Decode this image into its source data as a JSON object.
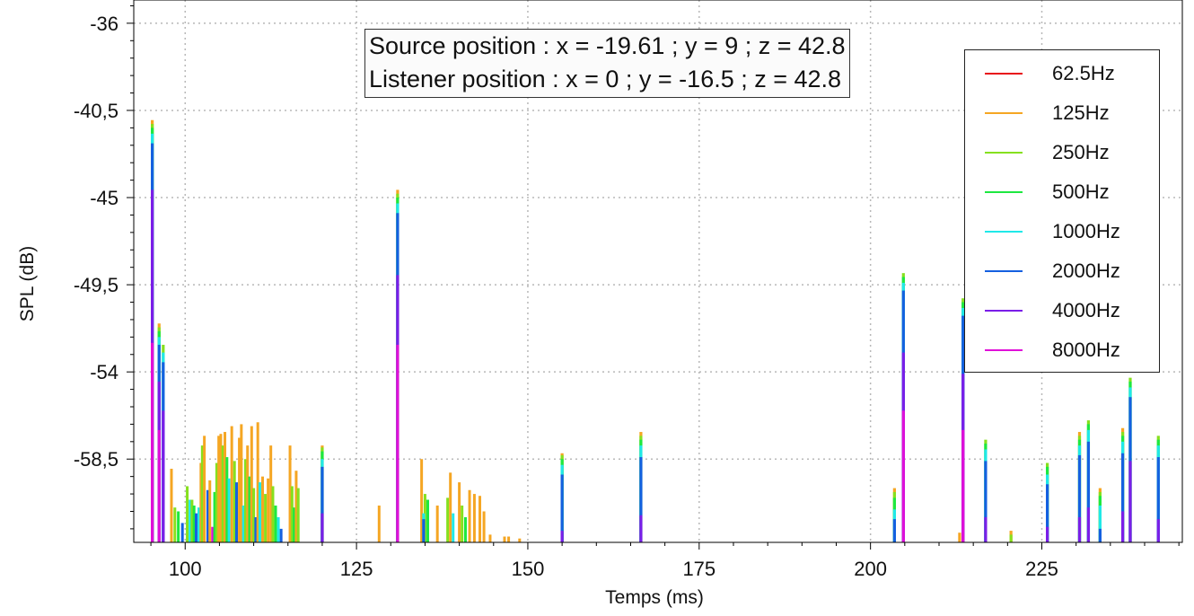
{
  "chart_data": {
    "type": "bar",
    "title": "",
    "xlabel": "Temps (ms)",
    "ylabel": "SPL (dB)",
    "xlim": [
      92.5,
      245.5
    ],
    "ylim": [
      -62.8,
      -34.8
    ],
    "x_ticks": [
      100,
      125,
      150,
      175,
      200,
      225
    ],
    "x_tick_labels": [
      "100",
      "125",
      "150",
      "175",
      "200",
      "225"
    ],
    "y_ticks": [
      -36,
      -40.5,
      -45,
      -49.5,
      -54,
      -58.5
    ],
    "y_tick_labels": [
      "-36",
      "-40,5",
      "-45",
      "-49,5",
      "-54",
      "-58,5"
    ],
    "grid": true,
    "legend_position": "top-right",
    "annotation": {
      "line1": "Source position : x = -19.61 ; y = 9 ; z = 42.8",
      "line2": "Listener position : x = 0 ; y = -16.5 ; z = 42.8"
    },
    "series": [
      {
        "name": "62.5Hz",
        "color": "#e8101a"
      },
      {
        "name": "125Hz",
        "color": "#f5a623"
      },
      {
        "name": "250Hz",
        "color": "#86e01e"
      },
      {
        "name": "500Hz",
        "color": "#1ee840"
      },
      {
        "name": "1000Hz",
        "color": "#20e8e8"
      },
      {
        "name": "2000Hz",
        "color": "#1460e0"
      },
      {
        "name": "4000Hz",
        "color": "#7a1ee8"
      },
      {
        "name": "8000Hz",
        "color": "#e010d8"
      }
    ],
    "impulses": [
      {
        "t": 95.2,
        "top": -41.0,
        "bands": [
          [
            "#f5a623",
            -41.0
          ],
          [
            "#86e01e",
            -41.2
          ],
          [
            "#1ee840",
            -41.4
          ],
          [
            "#20e8e8",
            -41.7
          ],
          [
            "#1460e0",
            -42.2
          ],
          [
            "#7a1ee8",
            -44.6
          ],
          [
            "#e010d8",
            -52.5
          ]
        ]
      },
      {
        "t": 96.2,
        "top": -51.5,
        "bands": [
          [
            "#f5a623",
            -51.5
          ],
          [
            "#86e01e",
            -51.7
          ],
          [
            "#1ee840",
            -51.9
          ],
          [
            "#20e8e8",
            -52.2
          ],
          [
            "#1460e0",
            -52.6
          ],
          [
            "#7a1ee8",
            -54.5
          ],
          [
            "#e010d8",
            -57.0
          ]
        ]
      },
      {
        "t": 96.8,
        "top": -52.6,
        "bands": [
          [
            "#86e01e",
            -52.6
          ],
          [
            "#20e8e8",
            -53.0
          ],
          [
            "#1460e0",
            -53.5
          ],
          [
            "#7a1ee8",
            -56.0
          ]
        ]
      },
      {
        "t": 131.0,
        "top": -44.6,
        "bands": [
          [
            "#f5a623",
            -44.6
          ],
          [
            "#86e01e",
            -44.8
          ],
          [
            "#1ee840",
            -45.0
          ],
          [
            "#20e8e8",
            -45.3
          ],
          [
            "#1460e0",
            -45.8
          ],
          [
            "#7a1ee8",
            -49.0
          ],
          [
            "#e010d8",
            -52.6
          ]
        ]
      },
      {
        "t": 120.0,
        "top": -57.8,
        "bands": [
          [
            "#f5a623",
            -57.8
          ],
          [
            "#86e01e",
            -57.9
          ],
          [
            "#1ee840",
            -58.1
          ],
          [
            "#20e8e8",
            -58.5
          ],
          [
            "#1460e0",
            -58.9
          ],
          [
            "#7a1ee8",
            -61.3
          ]
        ]
      },
      {
        "t": 155.0,
        "top": -58.2,
        "bands": [
          [
            "#f5a623",
            -58.2
          ],
          [
            "#86e01e",
            -58.3
          ],
          [
            "#1ee840",
            -58.5
          ],
          [
            "#20e8e8",
            -58.8
          ],
          [
            "#1460e0",
            -59.3
          ],
          [
            "#7a1ee8",
            -62.2
          ]
        ]
      },
      {
        "t": 166.5,
        "top": -57.1,
        "bands": [
          [
            "#f5a623",
            -57.1
          ],
          [
            "#86e01e",
            -57.3
          ],
          [
            "#1ee840",
            -57.5
          ],
          [
            "#20e8e8",
            -57.8
          ],
          [
            "#1460e0",
            -58.4
          ],
          [
            "#7a1ee8",
            -61.4
          ]
        ]
      },
      {
        "t": 203.5,
        "top": -60.0,
        "bands": [
          [
            "#f5a623",
            -60.0
          ],
          [
            "#86e01e",
            -60.2
          ],
          [
            "#1ee840",
            -60.5
          ],
          [
            "#20e8e8",
            -61.1
          ],
          [
            "#1460e0",
            -61.6
          ]
        ]
      },
      {
        "t": 204.8,
        "top": -48.9,
        "bands": [
          [
            "#86e01e",
            -48.9
          ],
          [
            "#1ee840",
            -49.1
          ],
          [
            "#20e8e8",
            -49.4
          ],
          [
            "#1460e0",
            -49.8
          ],
          [
            "#7a1ee8",
            -53.0
          ],
          [
            "#e010d8",
            -56.0
          ]
        ]
      },
      {
        "t": 213.5,
        "top": -50.2,
        "bands": [
          [
            "#86e01e",
            -50.2
          ],
          [
            "#1ee840",
            -50.4
          ],
          [
            "#20e8e8",
            -50.7
          ],
          [
            "#1460e0",
            -51.1
          ],
          [
            "#7a1ee8",
            -54.1
          ],
          [
            "#e010d8",
            -57.0
          ]
        ]
      },
      {
        "t": 216.8,
        "top": -57.5,
        "bands": [
          [
            "#86e01e",
            -57.5
          ],
          [
            "#1ee840",
            -57.7
          ],
          [
            "#20e8e8",
            -58.0
          ],
          [
            "#1460e0",
            -58.6
          ],
          [
            "#7a1ee8",
            -61.5
          ]
        ]
      },
      {
        "t": 220.5,
        "top": -62.2,
        "bands": [
          [
            "#f5a623",
            -62.2
          ],
          [
            "#86e01e",
            -62.4
          ]
        ]
      },
      {
        "t": 225.8,
        "top": -58.7,
        "bands": [
          [
            "#86e01e",
            -58.7
          ],
          [
            "#1ee840",
            -58.9
          ],
          [
            "#20e8e8",
            -59.3
          ],
          [
            "#1460e0",
            -59.8
          ],
          [
            "#7a1ee8",
            -62.0
          ]
        ]
      },
      {
        "t": 230.5,
        "top": -57.1,
        "bands": [
          [
            "#f5a623",
            -57.1
          ],
          [
            "#86e01e",
            -57.3
          ],
          [
            "#1ee840",
            -57.5
          ],
          [
            "#20e8e8",
            -57.8
          ],
          [
            "#1460e0",
            -58.3
          ],
          [
            "#7a1ee8",
            -61.5
          ]
        ]
      },
      {
        "t": 231.8,
        "top": -56.5,
        "bands": [
          [
            "#86e01e",
            -56.5
          ],
          [
            "#1ee840",
            -56.7
          ],
          [
            "#20e8e8",
            -57.0
          ],
          [
            "#1460e0",
            -57.6
          ],
          [
            "#7a1ee8",
            -61.0
          ]
        ]
      },
      {
        "t": 233.5,
        "top": -60.0,
        "bands": [
          [
            "#f5a623",
            -60.0
          ],
          [
            "#86e01e",
            -60.2
          ],
          [
            "#1ee840",
            -60.4
          ],
          [
            "#20e8e8",
            -60.9
          ],
          [
            "#1460e0",
            -62.1
          ]
        ]
      },
      {
        "t": 236.8,
        "top": -56.9,
        "bands": [
          [
            "#f5a623",
            -56.9
          ],
          [
            "#86e01e",
            -57.1
          ],
          [
            "#1ee840",
            -57.3
          ],
          [
            "#20e8e8",
            -57.6
          ],
          [
            "#1460e0",
            -58.2
          ],
          [
            "#7a1ee8",
            -61.2
          ]
        ]
      },
      {
        "t": 237.9,
        "top": -54.3,
        "bands": [
          [
            "#86e01e",
            -54.3
          ],
          [
            "#1ee840",
            -54.5
          ],
          [
            "#20e8e8",
            -54.8
          ],
          [
            "#1460e0",
            -55.3
          ],
          [
            "#7a1ee8",
            -58.6
          ]
        ]
      },
      {
        "t": 242.0,
        "top": -57.3,
        "bands": [
          [
            "#86e01e",
            -57.3
          ],
          [
            "#1ee840",
            -57.5
          ],
          [
            "#20e8e8",
            -57.8
          ],
          [
            "#1460e0",
            -58.4
          ],
          [
            "#7a1ee8",
            -61.6
          ]
        ]
      },
      {
        "t": 134.8,
        "top": -61.3,
        "bands": [
          [
            "#20e8e8",
            -61.3
          ],
          [
            "#1460e0",
            -61.6
          ]
        ]
      },
      {
        "t": 213.0,
        "top": -62.3,
        "bands": [
          [
            "#f5a623",
            -62.3
          ]
        ]
      }
    ],
    "low_freq_cluster": [
      {
        "t": 98.0,
        "top": -59.0,
        "color": "#f5a623"
      },
      {
        "t": 98.5,
        "top": -61.0,
        "color": "#86e01e"
      },
      {
        "t": 99.0,
        "top": -61.2,
        "color": "#1ee840"
      },
      {
        "t": 99.6,
        "top": -61.8,
        "color": "#1460e0"
      },
      {
        "t": 100.3,
        "top": -59.9,
        "color": "#86e01e"
      },
      {
        "t": 100.7,
        "top": -60.6,
        "color": "#20e8e8"
      },
      {
        "t": 101.0,
        "top": -60.6,
        "color": "#86e01e"
      },
      {
        "t": 101.3,
        "top": -60.9,
        "color": "#1ee840"
      },
      {
        "t": 101.6,
        "top": -61.3,
        "color": "#1460e0"
      },
      {
        "t": 102.0,
        "top": -61.0,
        "color": "#20e8e8"
      },
      {
        "t": 102.3,
        "top": -58.7,
        "color": "#f5a623"
      },
      {
        "t": 102.5,
        "top": -57.8,
        "color": "#86e01e"
      },
      {
        "t": 102.8,
        "top": -57.3,
        "color": "#f5a623"
      },
      {
        "t": 103.3,
        "top": -60.1,
        "color": "#1460e0"
      },
      {
        "t": 103.6,
        "top": -59.6,
        "color": "#f5a623"
      },
      {
        "t": 104.0,
        "top": -62.0,
        "color": "#e010d8"
      },
      {
        "t": 104.3,
        "top": -60.2,
        "color": "#1ee840"
      },
      {
        "t": 104.6,
        "top": -58.7,
        "color": "#86e01e"
      },
      {
        "t": 104.9,
        "top": -57.3,
        "color": "#f5a623"
      },
      {
        "t": 105.2,
        "top": -57.2,
        "color": "#f5a623"
      },
      {
        "t": 105.5,
        "top": -57.8,
        "color": "#86e01e"
      },
      {
        "t": 105.8,
        "top": -57.1,
        "color": "#f5a623"
      },
      {
        "t": 106.1,
        "top": -58.4,
        "color": "#1ee840"
      },
      {
        "t": 106.4,
        "top": -59.5,
        "color": "#20e8e8"
      },
      {
        "t": 106.8,
        "top": -56.8,
        "color": "#f5a623"
      },
      {
        "t": 107.2,
        "top": -58.6,
        "color": "#86e01e"
      },
      {
        "t": 107.5,
        "top": -59.7,
        "color": "#1460e0"
      },
      {
        "t": 107.9,
        "top": -57.4,
        "color": "#f5a623"
      },
      {
        "t": 108.2,
        "top": -56.7,
        "color": "#f5a623"
      },
      {
        "t": 108.5,
        "top": -60.9,
        "color": "#20e8e8"
      },
      {
        "t": 108.8,
        "top": -58.5,
        "color": "#86e01e"
      },
      {
        "t": 109.1,
        "top": -57.8,
        "color": "#f5a623"
      },
      {
        "t": 109.4,
        "top": -59.4,
        "color": "#1ee840"
      },
      {
        "t": 109.7,
        "top": -56.8,
        "color": "#f5a623"
      },
      {
        "t": 110.0,
        "top": -60.0,
        "color": "#86e01e"
      },
      {
        "t": 110.3,
        "top": -61.5,
        "color": "#1460e0"
      },
      {
        "t": 110.6,
        "top": -56.6,
        "color": "#f5a623"
      },
      {
        "t": 110.9,
        "top": -59.7,
        "color": "#20e8e8"
      },
      {
        "t": 111.3,
        "top": -59.4,
        "color": "#f5a623"
      },
      {
        "t": 111.7,
        "top": -60.3,
        "color": "#86e01e"
      },
      {
        "t": 112.1,
        "top": -59.5,
        "color": "#f5a623"
      },
      {
        "t": 112.5,
        "top": -57.8,
        "color": "#f5a623"
      },
      {
        "t": 112.8,
        "top": -59.9,
        "color": "#86e01e"
      },
      {
        "t": 113.2,
        "top": -60.9,
        "color": "#1ee840"
      },
      {
        "t": 113.6,
        "top": -61.5,
        "color": "#20e8e8"
      },
      {
        "t": 114.0,
        "top": -62.1,
        "color": "#1460e0"
      },
      {
        "t": 115.3,
        "top": -57.8,
        "color": "#f5a623"
      },
      {
        "t": 115.6,
        "top": -59.9,
        "color": "#86e01e"
      },
      {
        "t": 115.9,
        "top": -61.0,
        "color": "#1ee840"
      },
      {
        "t": 116.2,
        "top": -59.1,
        "color": "#f5a623"
      },
      {
        "t": 116.5,
        "top": -60.0,
        "color": "#86e01e"
      },
      {
        "t": 128.3,
        "top": -60.9,
        "color": "#f5a623"
      },
      {
        "t": 134.5,
        "top": -58.5,
        "color": "#f5a623"
      },
      {
        "t": 135.0,
        "top": -60.3,
        "color": "#86e01e"
      },
      {
        "t": 135.4,
        "top": -60.6,
        "color": "#1ee840"
      },
      {
        "t": 136.8,
        "top": -60.9,
        "color": "#f5a623"
      },
      {
        "t": 138.3,
        "top": -60.5,
        "color": "#86e01e"
      },
      {
        "t": 138.7,
        "top": -59.2,
        "color": "#f5a623"
      },
      {
        "t": 139.1,
        "top": -61.3,
        "color": "#20e8e8"
      },
      {
        "t": 140.0,
        "top": -59.7,
        "color": "#f5a623"
      },
      {
        "t": 140.4,
        "top": -60.9,
        "color": "#86e01e"
      },
      {
        "t": 140.9,
        "top": -61.5,
        "color": "#1ee840"
      },
      {
        "t": 141.5,
        "top": -60.1,
        "color": "#f5a623"
      },
      {
        "t": 142.2,
        "top": -60.3,
        "color": "#f5a623"
      },
      {
        "t": 143.0,
        "top": -60.4,
        "color": "#f5a623"
      },
      {
        "t": 143.6,
        "top": -61.2,
        "color": "#f5a623"
      },
      {
        "t": 144.5,
        "top": -62.4,
        "color": "#f5a623"
      },
      {
        "t": 146.6,
        "top": -62.5,
        "color": "#f5a623"
      },
      {
        "t": 147.2,
        "top": -62.5,
        "color": "#f5a623"
      },
      {
        "t": 148.8,
        "top": -62.6,
        "color": "#f5a623"
      }
    ]
  }
}
